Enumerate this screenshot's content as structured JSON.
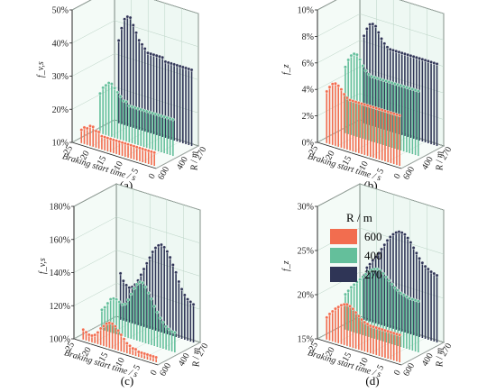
{
  "chart_data": [
    {
      "id": "a",
      "type": "3d-stem",
      "caption": "(a)",
      "zlabel": "f_v,s",
      "xlabel": "Braking start time / s",
      "ylabel": "R / m",
      "zlim": [
        10,
        50
      ],
      "z_ticks": [
        "10%",
        "20%",
        "30%",
        "40%",
        "50%"
      ],
      "x_ticks": [
        "25",
        "20",
        "15",
        "10",
        "5",
        "0"
      ],
      "y_ticks": [
        "270",
        "400",
        "600"
      ],
      "series": [
        {
          "radius": 270,
          "values": [
            35,
            39,
            42,
            43,
            43,
            41,
            39,
            37,
            36,
            35,
            34,
            34,
            34,
            34,
            34,
            34,
            33,
            33,
            33,
            33,
            33,
            33,
            33,
            33,
            33,
            33
          ]
        },
        {
          "radius": 400,
          "values": [
            22,
            24,
            25,
            26,
            26,
            25,
            24,
            23,
            22,
            22,
            21,
            21,
            21,
            21,
            21,
            21,
            21,
            21,
            21,
            21,
            21,
            21,
            21,
            21,
            21,
            21
          ]
        },
        {
          "radius": 600,
          "values": [
            14,
            15,
            15,
            16,
            16,
            15,
            15,
            14,
            14,
            14,
            14,
            14,
            14,
            14,
            14,
            14,
            14,
            14,
            14,
            14,
            14,
            14,
            14,
            14,
            14,
            14
          ]
        }
      ]
    },
    {
      "id": "b",
      "type": "3d-stem",
      "caption": "(b)",
      "zlabel": "f_z",
      "xlabel": "Braking start time / s",
      "ylabel": "R / m",
      "zlim": [
        0,
        10
      ],
      "z_ticks": [
        "0%",
        "2%",
        "4%",
        "6%",
        "8%",
        "10%"
      ],
      "x_ticks": [
        "25",
        "20",
        "15",
        "10",
        "5",
        "0"
      ],
      "y_ticks": [
        "270",
        "400",
        "600"
      ],
      "series": [
        {
          "radius": 270,
          "values": [
            6.6,
            7.2,
            7.6,
            7.7,
            7.6,
            7.2,
            6.8,
            6.5,
            6.3,
            6.2,
            6.2,
            6.2,
            6.2,
            6.2,
            6.2,
            6.2,
            6.2,
            6.2,
            6.2,
            6.2,
            6.2,
            6.2,
            6.2,
            6.2,
            6.2,
            6.2
          ]
        },
        {
          "radius": 400,
          "values": [
            5.0,
            5.6,
            6.0,
            6.2,
            6.2,
            5.9,
            5.5,
            5.2,
            5.0,
            4.9,
            4.9,
            4.9,
            4.9,
            4.9,
            4.9,
            4.9,
            4.9,
            4.9,
            4.9,
            4.9,
            4.9,
            4.9,
            4.9,
            4.9,
            4.9,
            4.9
          ]
        },
        {
          "radius": 600,
          "values": [
            3.9,
            4.3,
            4.6,
            4.7,
            4.6,
            4.4,
            4.1,
            3.9,
            3.8,
            3.8,
            3.8,
            3.8,
            3.8,
            3.8,
            3.8,
            3.8,
            3.8,
            3.8,
            3.8,
            3.8,
            3.8,
            3.8,
            3.8,
            3.8,
            3.8,
            3.8
          ]
        }
      ]
    },
    {
      "id": "c",
      "type": "3d-stem",
      "caption": "(c)",
      "zlabel": "f_v,s",
      "xlabel": "Braking start time / s",
      "ylabel": "R / m",
      "zlim": [
        100,
        180
      ],
      "z_ticks": [
        "100%",
        "120%",
        "140%",
        "160%",
        "180%"
      ],
      "x_ticks": [
        "25",
        "20",
        "15",
        "10",
        "5",
        "0"
      ],
      "y_ticks": [
        "270",
        "400",
        "600"
      ],
      "series": [
        {
          "radius": 270,
          "values": [
            128,
            124,
            122,
            121,
            122,
            124,
            127,
            131,
            135,
            139,
            143,
            147,
            150,
            152,
            153,
            152,
            150,
            147,
            143,
            139,
            134,
            130,
            127,
            125,
            124,
            123
          ]
        },
        {
          "radius": 400,
          "values": [
            112,
            114,
            117,
            120,
            121,
            121,
            120,
            119,
            120,
            123,
            127,
            131,
            134,
            136,
            136,
            134,
            131,
            128,
            124,
            121,
            118,
            116,
            114,
            113,
            112,
            112
          ]
        },
        {
          "radius": 600,
          "values": [
            106,
            105,
            104,
            104,
            105,
            107,
            110,
            112,
            114,
            115,
            115,
            114,
            112,
            110,
            108,
            106,
            105,
            104,
            104,
            103,
            103,
            103,
            103,
            103,
            103,
            103
          ]
        }
      ]
    },
    {
      "id": "d",
      "type": "3d-stem",
      "caption": "(d)",
      "zlabel": "f_z",
      "xlabel": "Braking start time / s",
      "ylabel": "R / m",
      "zlim": [
        15,
        30
      ],
      "z_ticks": [
        "15%",
        "20%",
        "25%",
        "30%"
      ],
      "x_ticks": [
        "25",
        "20",
        "15",
        "10",
        "5",
        "0"
      ],
      "y_ticks": [
        "270",
        "400",
        "600"
      ],
      "legend_title": "R / m",
      "legend": [
        "600",
        "400",
        "270"
      ],
      "series": [
        {
          "radius": 270,
          "values": [
            20,
            21,
            21.5,
            22,
            22.5,
            23,
            23.6,
            24.2,
            24.8,
            25.3,
            25.7,
            26,
            26.2,
            26.2,
            26.1,
            25.8,
            25.4,
            24.9,
            24.4,
            23.9,
            23.5,
            23.2,
            23,
            22.8,
            22.7,
            22.6
          ]
        },
        {
          "radius": 400,
          "values": [
            19,
            19.5,
            20,
            20.4,
            20.8,
            21.2,
            21.6,
            22,
            22.4,
            22.7,
            22.9,
            23,
            22.9,
            22.7,
            22.4,
            22.1,
            21.8,
            21.5,
            21.3,
            21.1,
            21,
            20.9,
            20.8,
            20.8,
            20.8,
            20.8
          ]
        },
        {
          "radius": 600,
          "values": [
            17.5,
            18,
            18.4,
            18.8,
            19.1,
            19.4,
            19.6,
            19.7,
            19.6,
            19.4,
            19.1,
            18.8,
            18.5,
            18.3,
            18.2,
            18.1,
            18.1,
            18.1,
            18.1,
            18.1,
            18.1,
            18.1,
            18.1,
            18.1,
            18.1,
            18.1
          ]
        }
      ]
    }
  ],
  "colors": {
    "600": "#f26d4f",
    "400": "#64bf9b",
    "270": "#2f3556"
  }
}
